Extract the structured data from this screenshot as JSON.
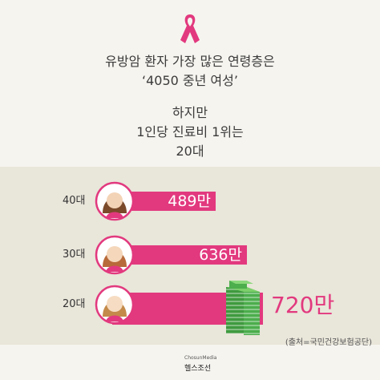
{
  "headline": {
    "line1": "유방암 환자 가장 많은 연령층은",
    "line2": "‘4050 중년 여성’",
    "line3": "하지만",
    "line4": "1인당 진료비 1위는",
    "line5": "20대"
  },
  "chart_data": {
    "type": "bar",
    "categories": [
      "40대",
      "30대",
      "20대"
    ],
    "values": [
      489,
      636,
      720
    ],
    "value_labels": [
      "489만",
      "636만",
      "720만"
    ],
    "unit": "만"
  },
  "source": "(출처=국민건강보험공단)",
  "footer": {
    "brand": "ChosunMedia",
    "name": "헬스조선"
  },
  "colors": {
    "accent": "#e2397e",
    "background": "#f6f4ef",
    "panel": "#e9e6da",
    "money": "#4cae4c"
  },
  "icons": {
    "ribbon": "pink-ribbon-icon",
    "money": "money-stack-icon",
    "logo": "chosun-logo-icon"
  }
}
